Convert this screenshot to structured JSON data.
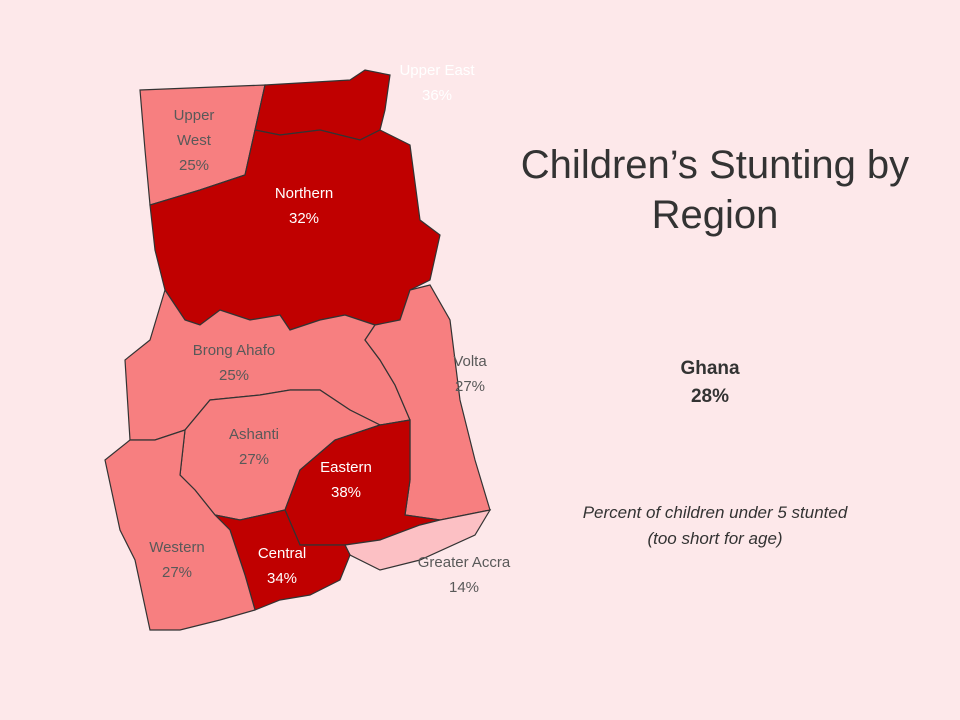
{
  "chart_data": {
    "type": "map",
    "title": "Children’s Stunting by Region",
    "national": {
      "name": "Ghana",
      "value": 28,
      "value_label": "28%"
    },
    "note": "Percent of children under 5 stunted (too short for age)",
    "regions": [
      "Upper West",
      "Upper East",
      "Northern",
      "Brong Ahafo",
      "Volta",
      "Ashanti",
      "Eastern",
      "Greater Accra",
      "Central",
      "Western"
    ],
    "values": [
      25,
      36,
      32,
      25,
      27,
      27,
      38,
      14,
      34,
      27
    ],
    "value_labels": [
      "25%",
      "36%",
      "32%",
      "25%",
      "27%",
      "27%",
      "38%",
      "14%",
      "34%",
      "27%"
    ],
    "colors": [
      "#f77f80",
      "#c00000",
      "#c00000",
      "#f77f80",
      "#f77f80",
      "#f77f80",
      "#c00000",
      "#fcc0c4",
      "#c00000",
      "#f77f80"
    ]
  }
}
